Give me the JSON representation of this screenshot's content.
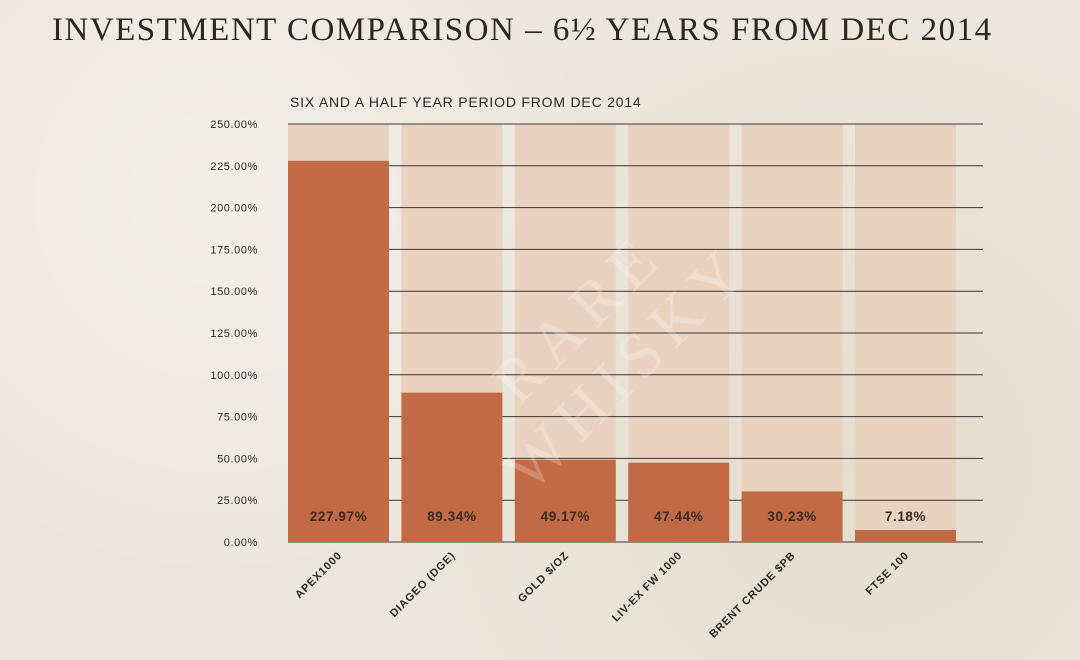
{
  "page": {
    "title": "INVESTMENT COMPARISON – 6½ YEARS FROM DEC 2014"
  },
  "colors": {
    "bar": "#c26a45",
    "track": "#ead2c1",
    "grid": "#3a3530",
    "text": "#2b2622"
  },
  "chart_data": {
    "type": "bar",
    "title": "SIX AND A HALF YEAR PERIOD FROM DEC 2014",
    "xlabel": "",
    "ylabel": "",
    "ylim": [
      0,
      250
    ],
    "yticks": [
      0,
      25,
      50,
      75,
      100,
      125,
      150,
      175,
      200,
      225,
      250
    ],
    "ytick_labels": [
      "0.00%",
      "25.00%",
      "50.00%",
      "75.00%",
      "100.00%",
      "125.00%",
      "150.00%",
      "175.00%",
      "200.00%",
      "225.00%",
      "250.00%"
    ],
    "categories": [
      "APEX1000",
      "DIAGEO (DGE)",
      "GOLD $/OZ",
      "LIV-EX FW 1000",
      "BRENT CRUDE $PB",
      "FTSE 100"
    ],
    "values": [
      227.97,
      89.34,
      49.17,
      47.44,
      30.23,
      7.18
    ],
    "data_labels": [
      "227.97%",
      "89.34%",
      "49.17%",
      "47.44%",
      "30.23%",
      "7.18%"
    ],
    "grid": true
  },
  "watermark": {
    "line1": "RARE",
    "line2": "WHISKY"
  }
}
